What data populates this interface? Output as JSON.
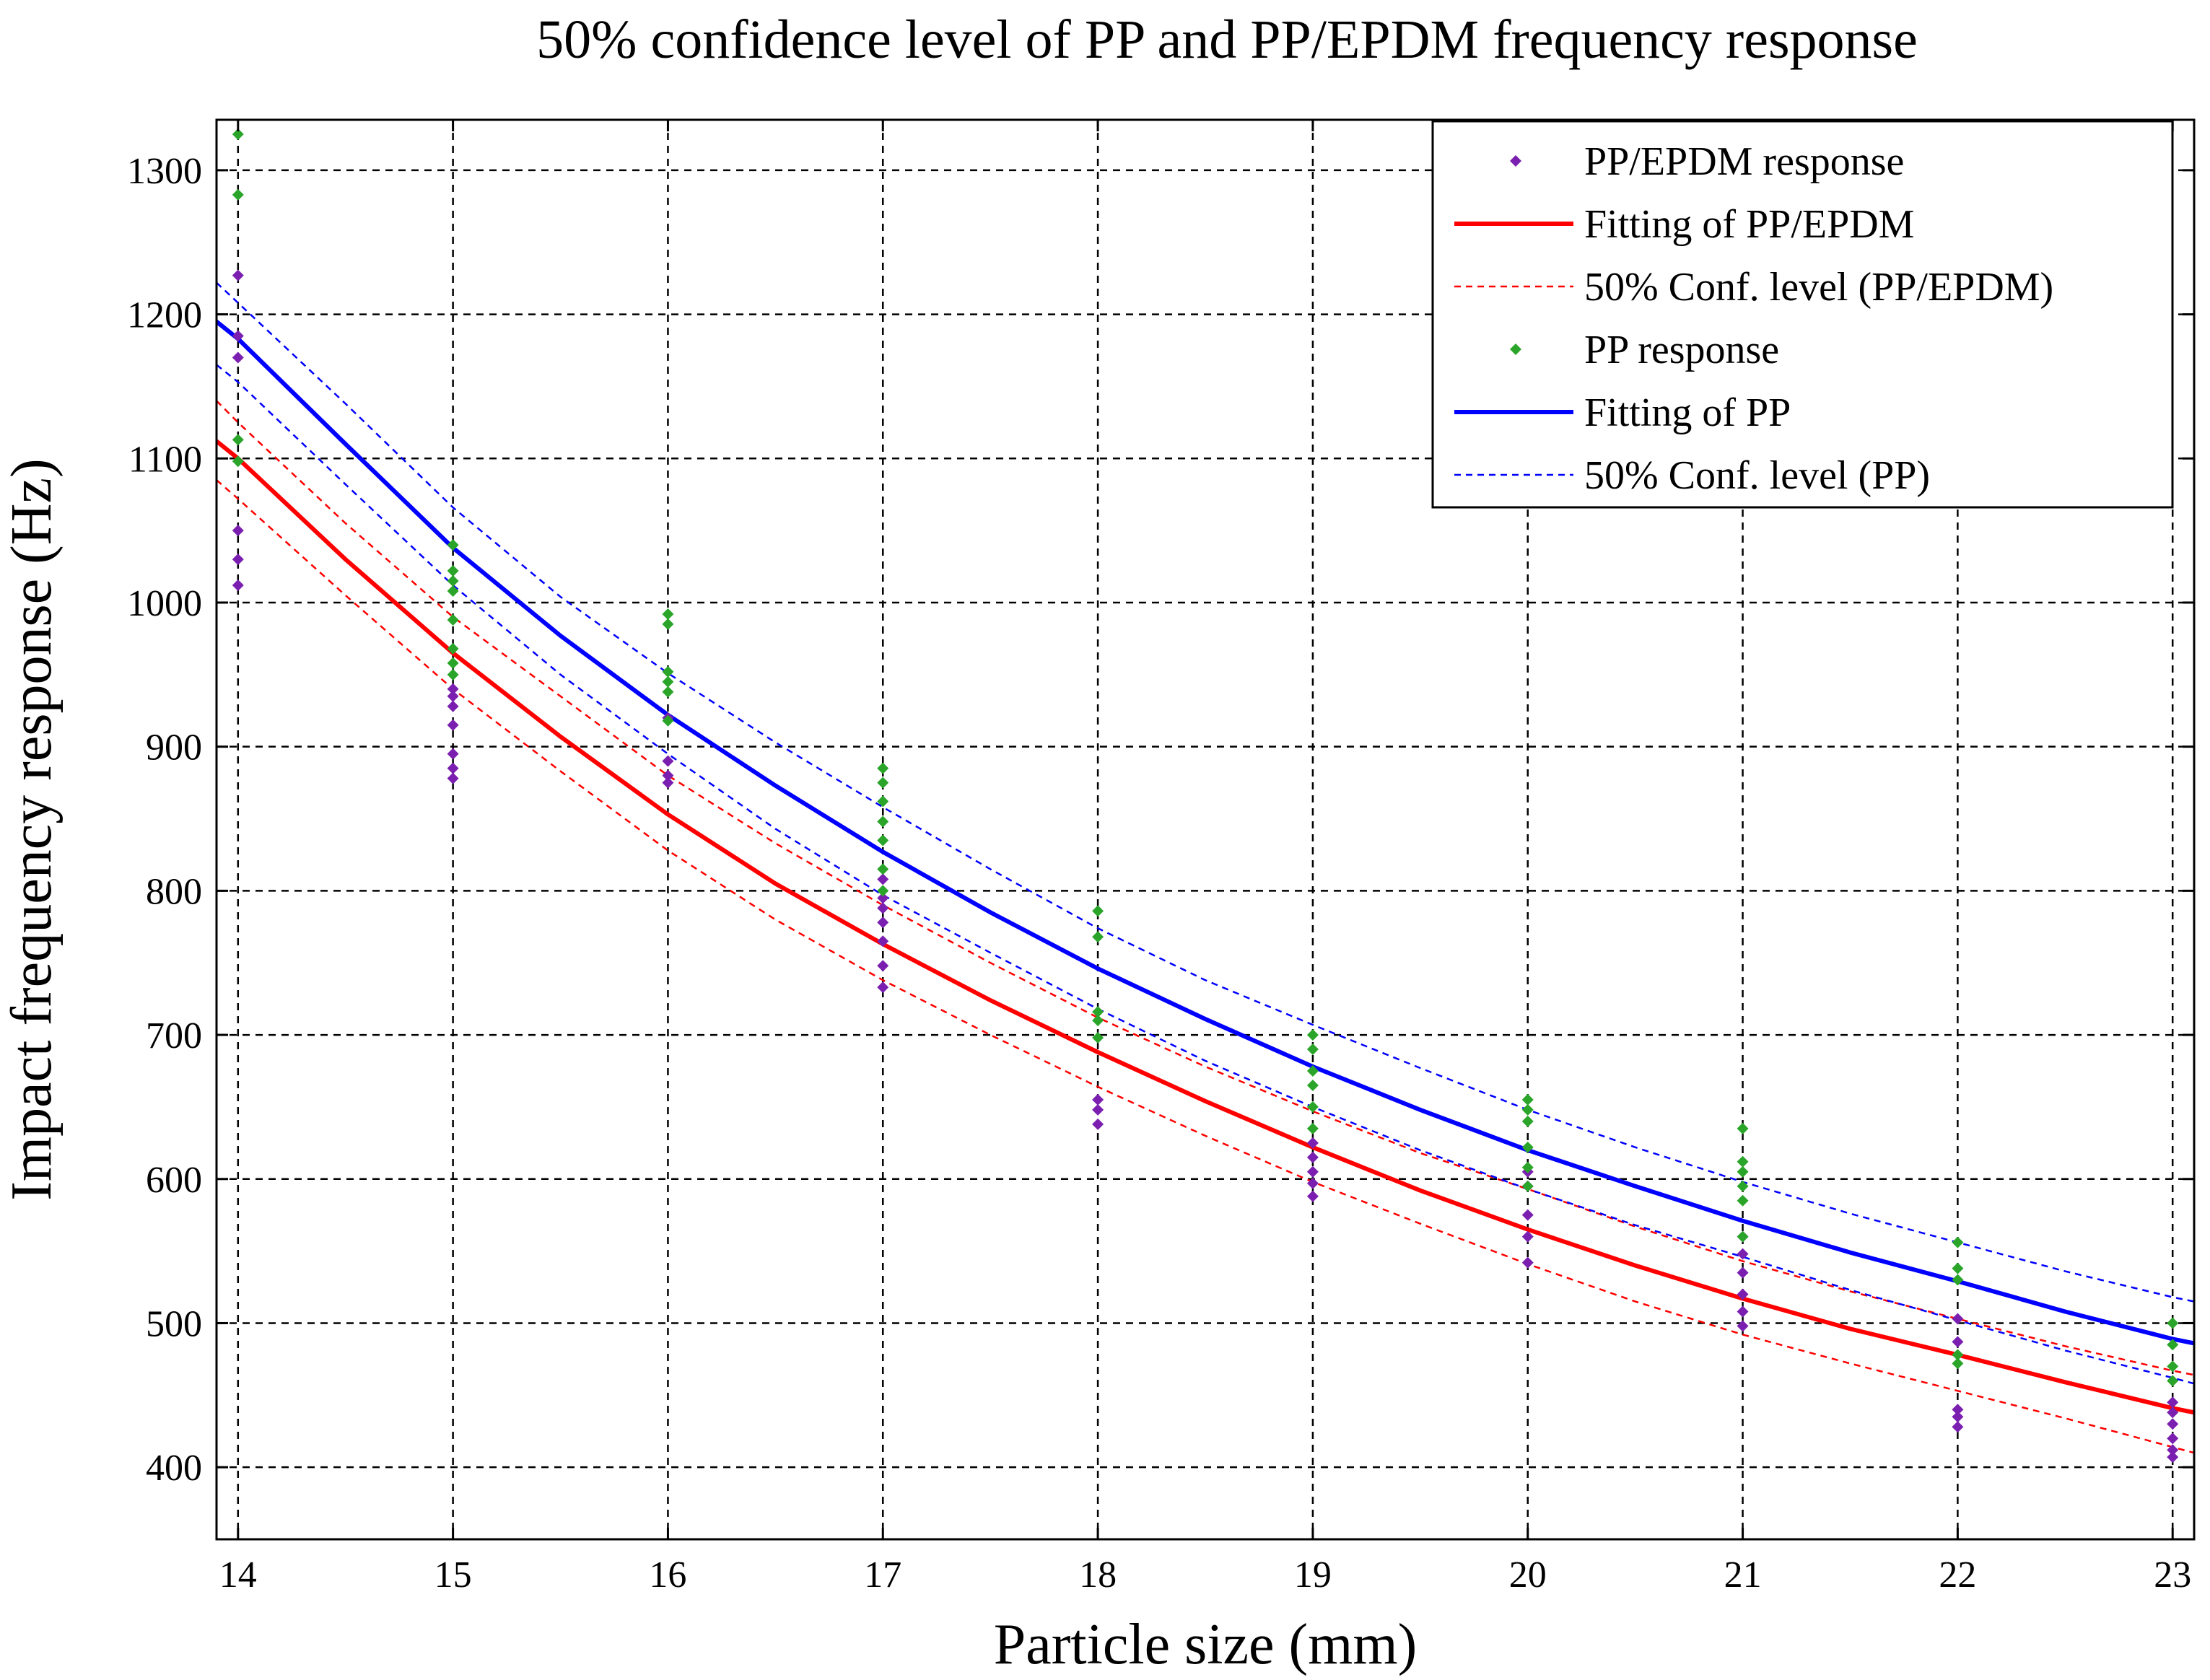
{
  "chart_data": {
    "type": "scatter",
    "title": "50% confidence level of PP and PP/EPDM frequency response",
    "xlabel": "Particle size (mm)",
    "ylabel": "Impact frequency response (Hz)",
    "xlim": [
      13.9,
      23.1
    ],
    "ylim": [
      350,
      1335
    ],
    "xticks": [
      14,
      15,
      16,
      17,
      18,
      19,
      20,
      21,
      22,
      23
    ],
    "yticks": [
      400,
      500,
      600,
      700,
      800,
      900,
      1000,
      1100,
      1200,
      1300
    ],
    "grid": true,
    "legend_position": "top-right",
    "colors": {
      "pp_epdm": "#7a1fb0",
      "pp": "#2aa52a",
      "fit_pp_epdm": "#ff0000",
      "fit_pp": "#0000ff"
    },
    "legend": [
      {
        "label": "PP/EPDM response",
        "kind": "marker",
        "color": "#7a1fb0"
      },
      {
        "label": "  Fitting of PP/EPDM",
        "kind": "solid",
        "color": "#ff0000"
      },
      {
        "label": "50% Conf. level (PP/EPDM)",
        "kind": "dashed",
        "color": "#ff0000"
      },
      {
        "label": "PP response",
        "kind": "marker",
        "color": "#2aa52a"
      },
      {
        "label": "  Fitting of PP",
        "kind": "solid",
        "color": "#0000ff"
      },
      {
        "label": "50% Conf. level (PP)",
        "kind": "dashed",
        "color": "#0000ff"
      }
    ],
    "series": [
      {
        "name": "PP/EPDM response",
        "kind": "scatter",
        "color": "#7a1fb0",
        "points": [
          [
            14,
            1227
          ],
          [
            14,
            1185
          ],
          [
            14,
            1170
          ],
          [
            14,
            1050
          ],
          [
            14,
            1030
          ],
          [
            14,
            1012
          ],
          [
            15,
            940
          ],
          [
            15,
            935
          ],
          [
            15,
            928
          ],
          [
            15,
            915
          ],
          [
            15,
            895
          ],
          [
            15,
            885
          ],
          [
            15,
            878
          ],
          [
            16,
            920
          ],
          [
            16,
            890
          ],
          [
            16,
            880
          ],
          [
            16,
            875
          ],
          [
            17,
            808
          ],
          [
            17,
            795
          ],
          [
            17,
            788
          ],
          [
            17,
            778
          ],
          [
            17,
            765
          ],
          [
            17,
            748
          ],
          [
            17,
            733
          ],
          [
            18,
            655
          ],
          [
            18,
            648
          ],
          [
            18,
            638
          ],
          [
            19,
            625
          ],
          [
            19,
            615
          ],
          [
            19,
            605
          ],
          [
            19,
            597
          ],
          [
            19,
            588
          ],
          [
            20,
            605
          ],
          [
            20,
            595
          ],
          [
            20,
            575
          ],
          [
            20,
            560
          ],
          [
            20,
            542
          ],
          [
            21,
            560
          ],
          [
            21,
            548
          ],
          [
            21,
            535
          ],
          [
            21,
            520
          ],
          [
            21,
            508
          ],
          [
            21,
            498
          ],
          [
            22,
            503
          ],
          [
            22,
            487
          ],
          [
            22,
            440
          ],
          [
            22,
            435
          ],
          [
            22,
            428
          ],
          [
            23,
            445
          ],
          [
            23,
            438
          ],
          [
            23,
            430
          ],
          [
            23,
            420
          ],
          [
            23,
            412
          ],
          [
            23,
            407
          ]
        ]
      },
      {
        "name": "PP response",
        "kind": "scatter",
        "color": "#2aa52a",
        "points": [
          [
            14,
            1325
          ],
          [
            14,
            1283
          ],
          [
            14,
            1113
          ],
          [
            14,
            1098
          ],
          [
            15,
            1040
          ],
          [
            15,
            1022
          ],
          [
            15,
            1015
          ],
          [
            15,
            1008
          ],
          [
            15,
            988
          ],
          [
            15,
            968
          ],
          [
            15,
            958
          ],
          [
            15,
            950
          ],
          [
            16,
            992
          ],
          [
            16,
            985
          ],
          [
            16,
            952
          ],
          [
            16,
            945
          ],
          [
            16,
            938
          ],
          [
            16,
            918
          ],
          [
            17,
            885
          ],
          [
            17,
            875
          ],
          [
            17,
            862
          ],
          [
            17,
            848
          ],
          [
            17,
            835
          ],
          [
            17,
            815
          ],
          [
            17,
            800
          ],
          [
            18,
            786
          ],
          [
            18,
            768
          ],
          [
            18,
            716
          ],
          [
            18,
            710
          ],
          [
            18,
            698
          ],
          [
            19,
            700
          ],
          [
            19,
            690
          ],
          [
            19,
            675
          ],
          [
            19,
            665
          ],
          [
            19,
            650
          ],
          [
            19,
            635
          ],
          [
            20,
            655
          ],
          [
            20,
            648
          ],
          [
            20,
            640
          ],
          [
            20,
            622
          ],
          [
            20,
            608
          ],
          [
            20,
            595
          ],
          [
            21,
            635
          ],
          [
            21,
            612
          ],
          [
            21,
            605
          ],
          [
            21,
            595
          ],
          [
            21,
            585
          ],
          [
            21,
            560
          ],
          [
            22,
            556
          ],
          [
            22,
            538
          ],
          [
            22,
            530
          ],
          [
            22,
            478
          ],
          [
            22,
            472
          ],
          [
            23,
            500
          ],
          [
            23,
            485
          ],
          [
            23,
            470
          ],
          [
            23,
            460
          ]
        ]
      },
      {
        "name": "Fitting of PP/EPDM",
        "kind": "line",
        "color": "#ff0000",
        "x": [
          13.9,
          14,
          14.5,
          15,
          15.5,
          16,
          16.5,
          17,
          17.5,
          18,
          18.5,
          19,
          19.5,
          20,
          20.5,
          21,
          21.5,
          22,
          22.5,
          23,
          23.1
        ],
        "y": [
          1112,
          1100,
          1030,
          965,
          907,
          853,
          805,
          763,
          724,
          688,
          654,
          622,
          592,
          565,
          540,
          517,
          496,
          478,
          459,
          441,
          438
        ]
      },
      {
        "name": "50% Conf. level (PP/EPDM) upper",
        "kind": "dashed",
        "color": "#ff0000",
        "x": [
          13.9,
          14,
          14.5,
          15,
          15.5,
          16,
          16.5,
          17,
          17.5,
          18,
          18.5,
          19,
          19.5,
          20,
          20.5,
          21,
          21.5,
          22,
          22.5,
          23,
          23.1
        ],
        "y": [
          1140,
          1125,
          1055,
          990,
          935,
          880,
          833,
          790,
          750,
          712,
          678,
          647,
          618,
          593,
          567,
          543,
          522,
          503,
          484,
          467,
          464
        ]
      },
      {
        "name": "50% Conf. level (PP/EPDM) lower",
        "kind": "dashed",
        "color": "#ff0000",
        "x": [
          13.9,
          14,
          14.5,
          15,
          15.5,
          16,
          16.5,
          17,
          17.5,
          18,
          18.5,
          19,
          19.5,
          20,
          20.5,
          21,
          21.5,
          22,
          22.5,
          23,
          23.1
        ],
        "y": [
          1085,
          1072,
          1005,
          940,
          883,
          828,
          780,
          738,
          700,
          664,
          630,
          598,
          569,
          541,
          515,
          492,
          472,
          453,
          434,
          414,
          410
        ]
      },
      {
        "name": "Fitting of PP",
        "kind": "line",
        "color": "#0000ff",
        "x": [
          13.9,
          14,
          14.5,
          15,
          15.5,
          16,
          16.5,
          17,
          17.5,
          18,
          18.5,
          19,
          19.5,
          20,
          20.5,
          21,
          21.5,
          22,
          22.5,
          23,
          23.1
        ],
        "y": [
          1195,
          1183,
          1110,
          1038,
          977,
          922,
          873,
          827,
          785,
          746,
          711,
          678,
          648,
          620,
          595,
          571,
          549,
          529,
          508,
          489,
          486
        ]
      },
      {
        "name": "50% Conf. level (PP) upper",
        "kind": "dashed",
        "color": "#0000ff",
        "x": [
          13.9,
          14,
          14.5,
          15,
          15.5,
          16,
          16.5,
          17,
          17.5,
          18,
          18.5,
          19,
          19.5,
          20,
          20.5,
          21,
          21.5,
          22,
          22.5,
          23,
          23.1
        ],
        "y": [
          1222,
          1208,
          1138,
          1066,
          1004,
          951,
          903,
          858,
          815,
          774,
          738,
          707,
          677,
          648,
          622,
          598,
          576,
          556,
          536,
          518,
          515
        ]
      },
      {
        "name": "50% Conf. level (PP) lower",
        "kind": "dashed",
        "color": "#0000ff",
        "x": [
          13.9,
          14,
          14.5,
          15,
          15.5,
          16,
          16.5,
          17,
          17.5,
          18,
          18.5,
          19,
          19.5,
          20,
          20.5,
          21,
          21.5,
          22,
          22.5,
          23,
          23.1
        ],
        "y": [
          1165,
          1153,
          1082,
          1012,
          950,
          895,
          843,
          797,
          757,
          718,
          682,
          650,
          620,
          593,
          568,
          546,
          523,
          502,
          481,
          462,
          458
        ]
      }
    ]
  }
}
